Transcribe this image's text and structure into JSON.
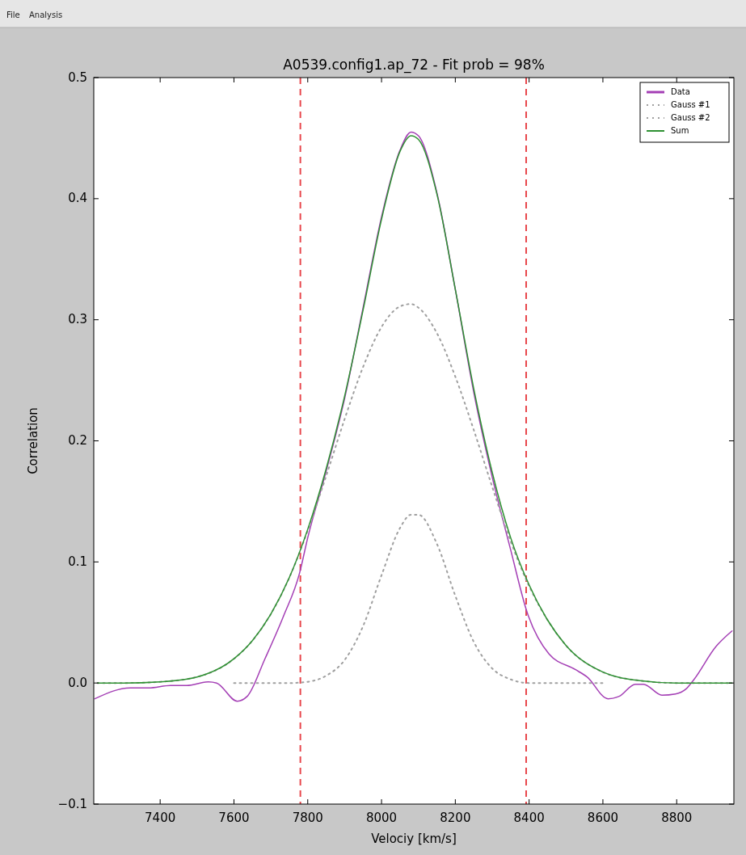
{
  "chart_data": {
    "type": "line",
    "title": "A0539.config1.ap_72 - Fit prob = 98%",
    "xlabel": "Velociy [km/s]",
    "ylabel": "Correlation",
    "annotations": [
      "File",
      "Analysis"
    ],
    "xlim": [
      7220,
      8955
    ],
    "xticks": [
      7400,
      7600,
      7800,
      8000,
      8200,
      8400,
      8600,
      8800
    ],
    "ylim": [
      -0.1,
      0.5
    ],
    "yticks": [
      {
        "value": -0.1,
        "label": "−0.1"
      },
      {
        "value": 0,
        "label": "0.0"
      },
      {
        "value": 0.1,
        "label": "0.1"
      },
      {
        "value": 0.2,
        "label": "0.2"
      },
      {
        "value": 0.3,
        "label": "0.3"
      },
      {
        "value": 0.4,
        "label": "0.4"
      },
      {
        "value": 0.5,
        "label": "0.5"
      }
    ],
    "grid": false,
    "legend": "top right",
    "marker": "none",
    "ref_lines": [
      {
        "axis": "x",
        "value": 7780,
        "color": "#e8474c",
        "line_style": "dashed"
      },
      {
        "axis": "x",
        "value": 8392,
        "color": "#e8474c",
        "line_style": "dashed"
      }
    ],
    "series": [
      {
        "name": "Data",
        "color": "#a43fb5",
        "line_style": "solid",
        "x": [
          7223,
          7319,
          7369,
          7428,
          7472,
          7531,
          7553,
          7609,
          7636,
          7684,
          7734,
          7778,
          7800,
          7850,
          7900,
          7950,
          8000,
          8050,
          8080,
          8100,
          8150,
          8200,
          8250,
          8300,
          8350,
          8395,
          8454,
          8526,
          8557,
          8614,
          8644,
          8688,
          8710,
          8760,
          8797,
          8825,
          8847,
          8906,
          8950
        ],
        "values": [
          -0.013,
          -0.004,
          -0.004,
          -0.002,
          -0.002,
          0.001,
          0.0,
          -0.015,
          -0.011,
          0.02,
          0.055,
          0.091,
          0.12,
          0.175,
          0.235,
          0.31,
          0.385,
          0.44,
          0.455,
          0.452,
          0.405,
          0.325,
          0.24,
          0.17,
          0.11,
          0.058,
          0.024,
          0.011,
          0.005,
          -0.013,
          -0.011,
          -0.001,
          -0.001,
          -0.01,
          -0.009,
          -0.005,
          0.003,
          0.03,
          0.043
        ]
      },
      {
        "name": "Gauss #1",
        "color": "#a0a0a0",
        "line_style": "dotted",
        "x": [
          7230,
          7300,
          7400,
          7500,
          7600,
          7650,
          7700,
          7750,
          7800,
          7850,
          7900,
          7950,
          8000,
          8050,
          8080,
          8100,
          8150,
          8200,
          8250,
          8300,
          8350,
          8400,
          8450,
          8500,
          8600,
          8700,
          8800,
          8950
        ],
        "values": [
          0.0,
          0.0,
          0.001,
          0.005,
          0.02,
          0.035,
          0.057,
          0.087,
          0.126,
          0.171,
          0.218,
          0.261,
          0.294,
          0.311,
          0.313,
          0.31,
          0.289,
          0.253,
          0.209,
          0.162,
          0.117,
          0.08,
          0.052,
          0.031,
          0.009,
          0.002,
          0.0,
          0.0
        ]
      },
      {
        "name": "Gauss #2",
        "color": "#a0a0a0",
        "line_style": "dotted",
        "x": [
          7600,
          7650,
          7700,
          7750,
          7800,
          7850,
          7900,
          7950,
          8000,
          8050,
          8080,
          8100,
          8150,
          8200,
          8250,
          8300,
          8350,
          8400,
          8450,
          8500,
          8600
        ],
        "values": [
          0.0,
          0.0,
          0.0,
          0.0,
          0.001,
          0.006,
          0.019,
          0.047,
          0.089,
          0.128,
          0.139,
          0.139,
          0.115,
          0.072,
          0.034,
          0.012,
          0.003,
          0.0,
          0.0,
          0.0,
          0.0
        ]
      },
      {
        "name": "Sum",
        "color": "#2e9132",
        "line_style": "solid",
        "x": [
          7230,
          7300,
          7400,
          7500,
          7600,
          7650,
          7700,
          7750,
          7800,
          7850,
          7900,
          7950,
          8000,
          8050,
          8080,
          8100,
          8150,
          8200,
          8250,
          8300,
          8350,
          8400,
          8450,
          8500,
          8600,
          8700,
          8800,
          8950
        ],
        "values": [
          0.0,
          0.0,
          0.001,
          0.005,
          0.02,
          0.035,
          0.057,
          0.087,
          0.127,
          0.177,
          0.237,
          0.308,
          0.383,
          0.439,
          0.452,
          0.449,
          0.404,
          0.325,
          0.243,
          0.174,
          0.12,
          0.081,
          0.052,
          0.031,
          0.009,
          0.002,
          0.0,
          0.0
        ]
      }
    ]
  }
}
